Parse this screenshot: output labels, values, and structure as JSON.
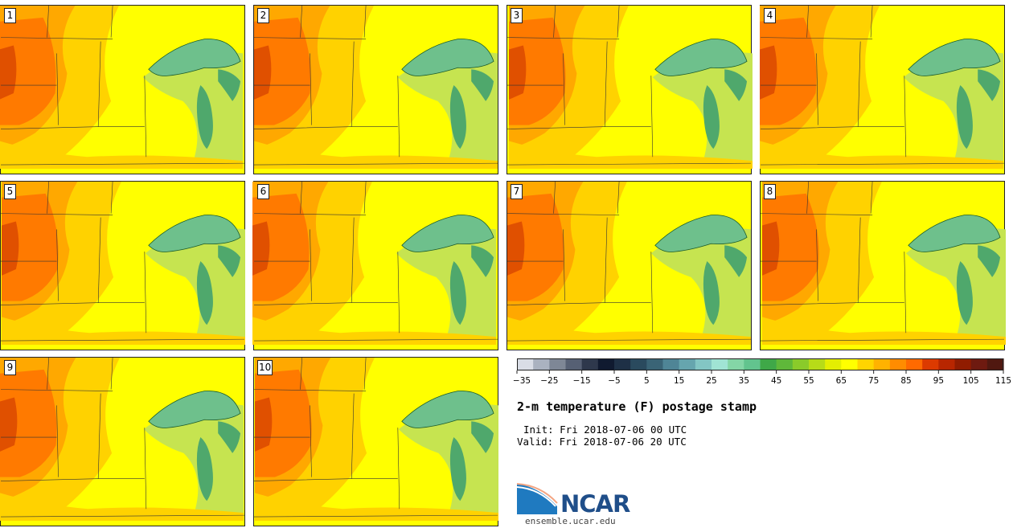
{
  "figure": {
    "title": "2-m temperature (F) postage stamp",
    "init": "Init: Fri 2018-07-06 00 UTC",
    "valid": "Valid: Fri 2018-07-06 20 UTC"
  },
  "panels": [
    {
      "label": "1"
    },
    {
      "label": "2"
    },
    {
      "label": "3"
    },
    {
      "label": "4"
    },
    {
      "label": "5"
    },
    {
      "label": "6"
    },
    {
      "label": "7"
    },
    {
      "label": "8"
    },
    {
      "label": "9"
    },
    {
      "label": "10"
    }
  ],
  "colorbar": {
    "tick_labels": [
      "−35",
      "−25",
      "−15",
      "−5",
      "5",
      "15",
      "25",
      "35",
      "45",
      "55",
      "65",
      "75",
      "85",
      "95",
      "105",
      "115"
    ],
    "colors": [
      "#d9dde6",
      "#aab2c0",
      "#7e8796",
      "#566074",
      "#2e384c",
      "#101a30",
      "#1e3046",
      "#2a4a5e",
      "#3a6476",
      "#4f8596",
      "#66a5ae",
      "#83c6c4",
      "#a0e4d4",
      "#84d6a6",
      "#62c48e",
      "#3fa848",
      "#5fb83a",
      "#8acb2a",
      "#b7db18",
      "#e4ee02",
      "#ffff00",
      "#ffd400",
      "#ffb200",
      "#ff8c00",
      "#ff6a00",
      "#dc3a00",
      "#b82600",
      "#901c00",
      "#6e1a10",
      "#501810"
    ],
    "units": "F"
  },
  "logo": {
    "name": "NCAR",
    "url": "ensemble.ucar.edu"
  },
  "colors": {
    "cold_lake": "#6ec08c",
    "lake_shade": "#4fa86c",
    "land_green": "#c6e450",
    "yellow_green": "#e6f000",
    "yellow": "#ffff00",
    "gold": "#ffd200",
    "orange": "#ffa800",
    "hot": "#ff7a00",
    "hottest": "#e05000",
    "border": "#222222"
  }
}
